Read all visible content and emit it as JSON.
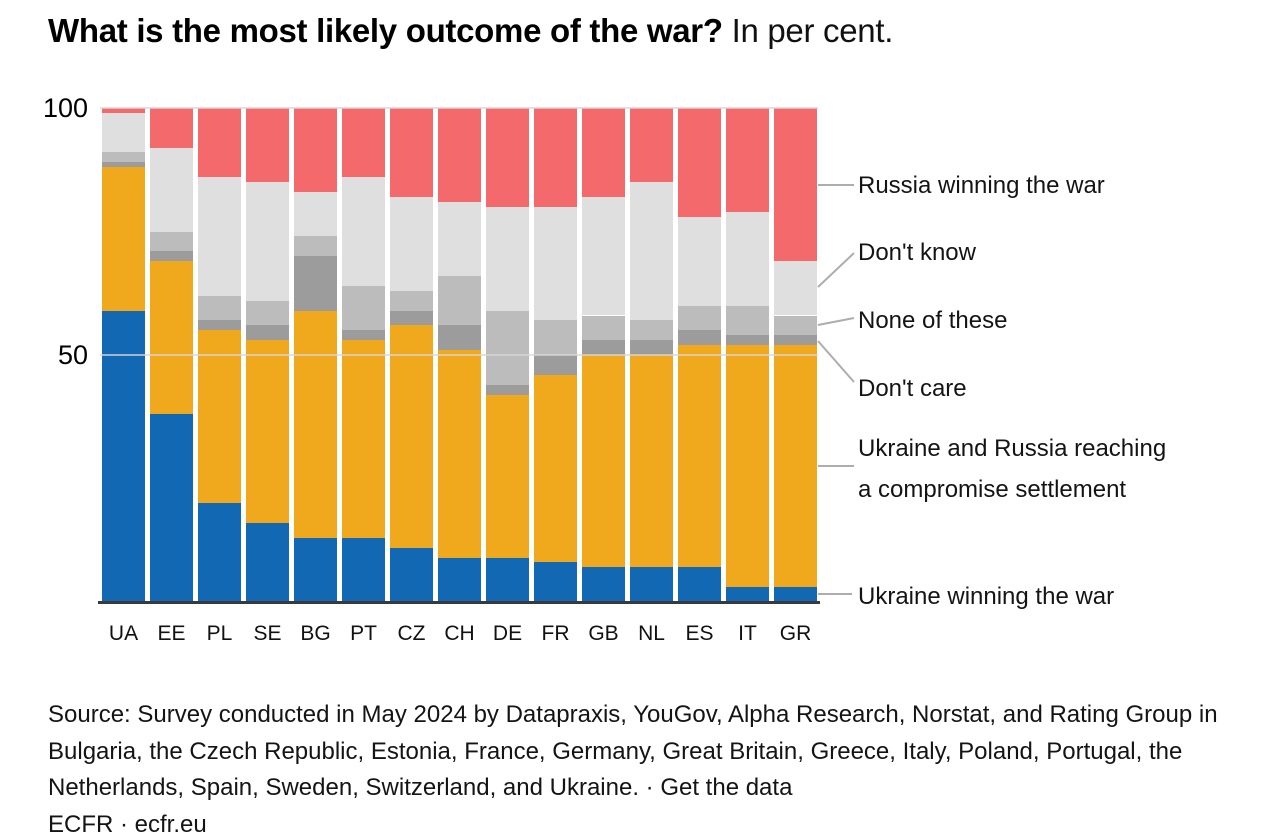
{
  "title": {
    "question": "What is the most likely outcome of the war?",
    "unit": "In per cent."
  },
  "y_axis": {
    "ticks": [
      {
        "label": "100",
        "value": 100
      },
      {
        "label": "50",
        "value": 50
      }
    ]
  },
  "chart_data": {
    "type": "bar",
    "stacked": true,
    "unit": "per cent",
    "ylim": [
      0,
      100
    ],
    "gridlines": [
      100,
      50
    ],
    "legend_position": "right",
    "categories": [
      "UA",
      "EE",
      "PL",
      "SE",
      "BG",
      "PT",
      "CZ",
      "CH",
      "DE",
      "FR",
      "GB",
      "NL",
      "ES",
      "IT",
      "GR"
    ],
    "series": [
      {
        "key": "ukraine_winning",
        "name": "Ukraine winning the war",
        "color": "#1268b3",
        "values": [
          59,
          38,
          20,
          16,
          13,
          13,
          11,
          9,
          9,
          8,
          7,
          7,
          7,
          3,
          3
        ]
      },
      {
        "key": "compromise",
        "name": "Ukraine and Russia reaching a compromise settlement",
        "color": "#f0a81d",
        "values": [
          29,
          31,
          35,
          37,
          46,
          40,
          45,
          42,
          33,
          38,
          43,
          43,
          45,
          49,
          49
        ]
      },
      {
        "key": "dont_care",
        "name": "Don't care",
        "color": "#9c9c9c",
        "values": [
          1,
          2,
          2,
          3,
          11,
          2,
          3,
          5,
          2,
          4,
          3,
          3,
          3,
          2,
          2
        ]
      },
      {
        "key": "none_of_these",
        "name": "None of these",
        "color": "#bcbcbc",
        "values": [
          2,
          4,
          5,
          5,
          4,
          9,
          4,
          10,
          15,
          7,
          5,
          4,
          5,
          6,
          4
        ]
      },
      {
        "key": "dont_know",
        "name": "Don't know",
        "color": "#dfdfdf",
        "values": [
          8,
          17,
          24,
          24,
          9,
          22,
          19,
          15,
          21,
          23,
          24,
          28,
          18,
          19,
          11
        ]
      },
      {
        "key": "russia_winning",
        "name": "Russia winning the war",
        "color": "#f4696b",
        "values": [
          1,
          8,
          14,
          15,
          17,
          14,
          18,
          19,
          20,
          20,
          18,
          15,
          22,
          21,
          31
        ]
      }
    ]
  },
  "legend": {
    "russia": "Russia winning the war",
    "dont_know": "Don't know",
    "none_of_these": "None of these",
    "dont_care": "Don't care",
    "compromise_line1": "Ukraine and Russia reaching",
    "compromise_line2": "a compromise settlement",
    "ukraine": "Ukraine winning the war"
  },
  "style": {
    "axis_line": "#3a3a3a",
    "leader_line": "#adadad",
    "gridline": "#d7d7d7"
  },
  "source": {
    "line1": "Source: Survey conducted in May 2024 by Datapraxis, YouGov, Alpha Research, Norstat, and Rating Group in",
    "line2": "Bulgaria, the Czech Republic, Estonia, France, Germany, Great Britain, Greece, Italy, Poland, Portugal, the",
    "line3_prefix": "Netherlands, Spain, Sweden, Switzerland, and Ukraine. · ",
    "line3_link": "Get the data",
    "line4": "ECFR · ecfr.eu"
  }
}
